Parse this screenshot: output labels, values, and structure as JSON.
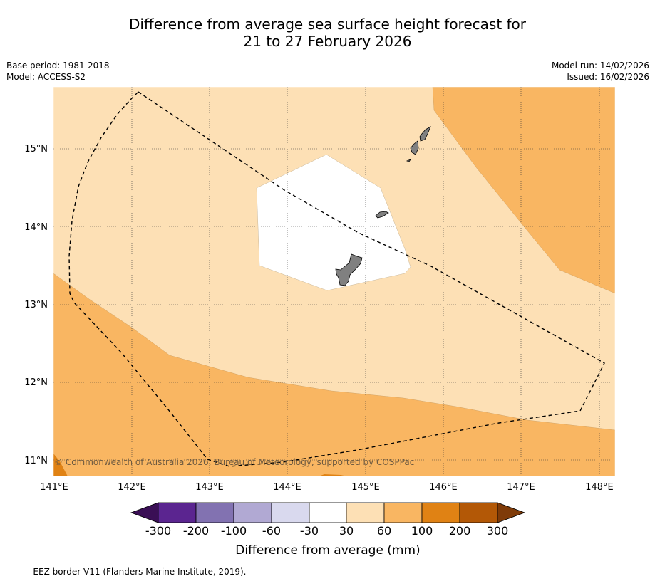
{
  "title": {
    "line1": "Difference from average sea surface height forecast for",
    "line2": "21 to 27 February 2026"
  },
  "meta": {
    "base_period": "Base period: 1981-2018",
    "model": "Model: ACCESS-S2",
    "model_run": "Model run: 14/02/2026",
    "issued": "Issued: 16/02/2026"
  },
  "map": {
    "lat_labels": [
      "15°N",
      "14°N",
      "13°N",
      "12°N",
      "11°N"
    ],
    "lon_labels": [
      "141°E",
      "142°E",
      "143°E",
      "144°E",
      "145°E",
      "146°E",
      "147°E",
      "148°E"
    ],
    "copyright": "© Commonwealth of Australia 2026, Bureau of Meteorology, supported by COSPPac",
    "land_color": "#808080"
  },
  "colorbar": {
    "title": "Difference from average (mm)",
    "ticks": [
      "-300",
      "-200",
      "-100",
      "-60",
      "-30",
      "30",
      "60",
      "100",
      "200",
      "300"
    ],
    "colors": [
      "#3a0f55",
      "#5b2590",
      "#8272b1",
      "#b1a9d3",
      "#d9d9ee",
      "#ffffff",
      "#fde0b5",
      "#f9b662",
      "#e08214",
      "#b35806",
      "#7f3b08"
    ]
  },
  "footer": {
    "legend": "--  --  -- EEZ border V11 (Flanders Marine Institute, 2019)."
  }
}
